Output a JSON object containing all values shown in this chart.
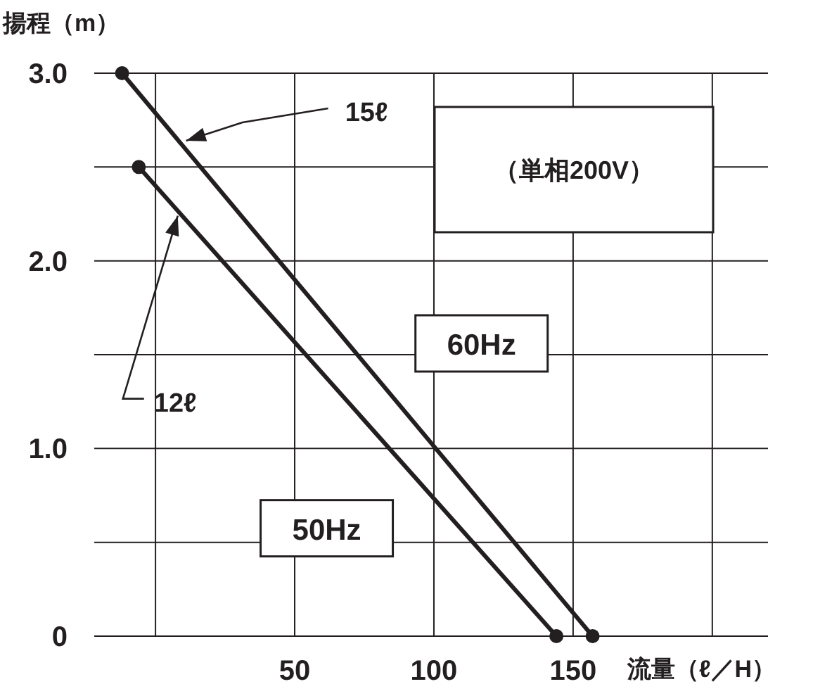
{
  "chart_data": {
    "type": "line",
    "ylabel": "揚程（m）",
    "xlabel": "流量（ℓ／H）",
    "xlim": [
      -22,
      220
    ],
    "ylim": [
      0,
      3
    ],
    "xticks": [
      {
        "value": 0,
        "label": null
      },
      50,
      100,
      150,
      {
        "value": 200,
        "label": null
      }
    ],
    "yticks": [
      0,
      {
        "value": 0.5,
        "label": null
      },
      {
        "value": 1,
        "label": "1.0"
      },
      {
        "value": 1.5,
        "label": null
      },
      {
        "value": 2,
        "label": "2.0"
      },
      {
        "value": 2.5,
        "label": null
      },
      {
        "value": 3,
        "label": "3.0"
      }
    ],
    "grid": true,
    "marker": "circle",
    "line_style": "solid",
    "legend": false,
    "series": [
      {
        "name": "60Hz",
        "color": "#231f20",
        "x": [
          -12,
          157
        ],
        "values": [
          3.0,
          0
        ]
      },
      {
        "name": "50Hz",
        "color": "#231f20",
        "x": [
          -6,
          144
        ],
        "values": [
          2.5,
          0
        ]
      }
    ],
    "annotations": [
      {
        "text": "15ℓ",
        "x": 11,
        "y": 2.64
      },
      {
        "text": "12ℓ",
        "x": 8,
        "y": 2.24
      },
      "（単相200V）"
    ]
  }
}
